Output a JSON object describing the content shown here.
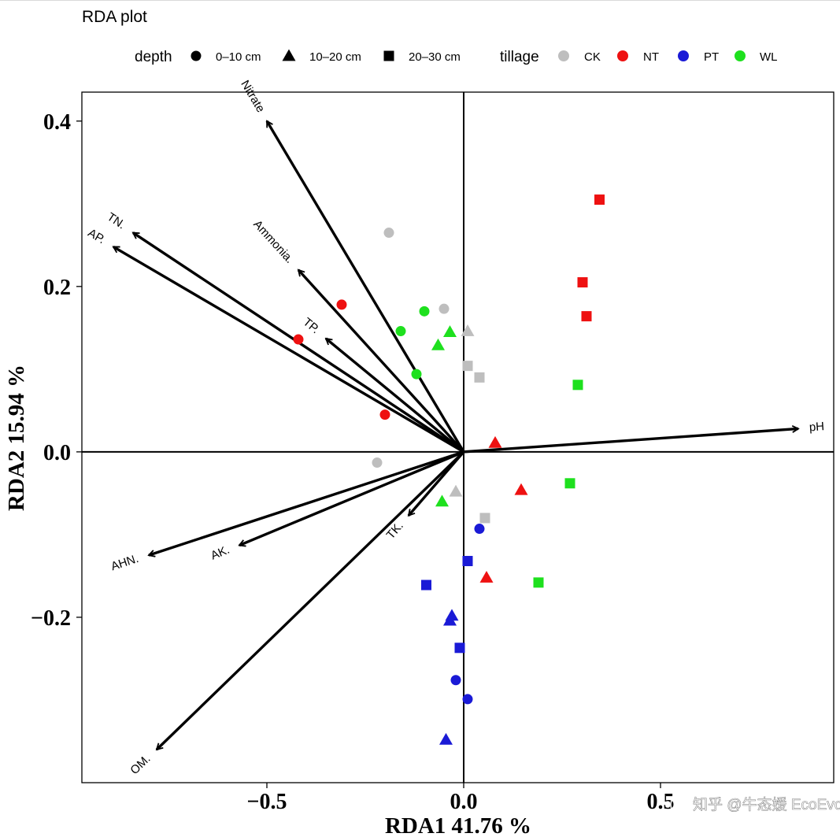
{
  "chart_data": {
    "type": "scatter",
    "title": "RDA plot",
    "xlabel": "RDA1 41.76  %",
    "ylabel": "RDA2 15.94  %",
    "xlim": [
      -0.97,
      0.94
    ],
    "ylim": [
      -0.4,
      0.435
    ],
    "xticks": [
      -0.5,
      0.0,
      0.5
    ],
    "xtick_labels": [
      "−0.5",
      "0.0",
      "0.5"
    ],
    "yticks": [
      -0.2,
      0.0,
      0.2,
      0.4
    ],
    "ytick_labels": [
      "−0.2",
      "0.0",
      "0.2",
      "0.4"
    ],
    "legend": {
      "position": "top",
      "depth_title": "depth",
      "depth_items": [
        {
          "label": "0–10 cm",
          "shape": "circle"
        },
        {
          "label": "10–20 cm",
          "shape": "triangle"
        },
        {
          "label": "20–30 cm",
          "shape": "square"
        }
      ],
      "tillage_title": "tillage",
      "tillage_items": [
        {
          "label": "CK",
          "color": "#bebebe"
        },
        {
          "label": "NT",
          "color": "#ee1111"
        },
        {
          "label": "PT",
          "color": "#1a1ad6"
        },
        {
          "label": "WL",
          "color": "#1ee01e"
        }
      ]
    },
    "colors": {
      "CK": "#bebebe",
      "NT": "#ee1111",
      "PT": "#1a1ad6",
      "WL": "#1ee01e"
    },
    "arrows": [
      {
        "label": "Nitrate",
        "x": -0.5,
        "y": 0.4
      },
      {
        "label": "TN.",
        "x": -0.84,
        "y": 0.265
      },
      {
        "label": "AP.",
        "x": -0.89,
        "y": 0.248
      },
      {
        "label": "Ammonia.",
        "x": -0.42,
        "y": 0.22
      },
      {
        "label": "TP.",
        "x": -0.35,
        "y": 0.137
      },
      {
        "label": "pH",
        "x": 0.85,
        "y": 0.028
      },
      {
        "label": "TK.",
        "x": -0.14,
        "y": -0.077
      },
      {
        "label": "AK.",
        "x": -0.57,
        "y": -0.113
      },
      {
        "label": "AHN.",
        "x": -0.8,
        "y": -0.125
      },
      {
        "label": "OM.",
        "x": -0.78,
        "y": -0.36
      }
    ],
    "points": [
      {
        "tillage": "CK",
        "depth": "0-10 cm",
        "x": -0.19,
        "y": 0.265
      },
      {
        "tillage": "CK",
        "depth": "0-10 cm",
        "x": -0.05,
        "y": 0.173
      },
      {
        "tillage": "CK",
        "depth": "0-10 cm",
        "x": -0.22,
        "y": -0.013
      },
      {
        "tillage": "CK",
        "depth": "10-20 cm",
        "x": 0.01,
        "y": 0.146
      },
      {
        "tillage": "CK",
        "depth": "10-20 cm",
        "x": -0.02,
        "y": -0.048
      },
      {
        "tillage": "CK",
        "depth": "20-30 cm",
        "x": 0.01,
        "y": 0.104
      },
      {
        "tillage": "CK",
        "depth": "20-30 cm",
        "x": 0.04,
        "y": 0.09
      },
      {
        "tillage": "CK",
        "depth": "20-30 cm",
        "x": 0.054,
        "y": -0.08
      },
      {
        "tillage": "NT",
        "depth": "0-10 cm",
        "x": -0.31,
        "y": 0.178
      },
      {
        "tillage": "NT",
        "depth": "0-10 cm",
        "x": -0.42,
        "y": 0.136
      },
      {
        "tillage": "NT",
        "depth": "0-10 cm",
        "x": -0.2,
        "y": 0.045
      },
      {
        "tillage": "NT",
        "depth": "10-20 cm",
        "x": 0.08,
        "y": 0.011
      },
      {
        "tillage": "NT",
        "depth": "10-20 cm",
        "x": 0.146,
        "y": -0.046
      },
      {
        "tillage": "NT",
        "depth": "10-20 cm",
        "x": 0.058,
        "y": -0.152
      },
      {
        "tillage": "NT",
        "depth": "20-30 cm",
        "x": 0.345,
        "y": 0.305
      },
      {
        "tillage": "NT",
        "depth": "20-30 cm",
        "x": 0.302,
        "y": 0.205
      },
      {
        "tillage": "NT",
        "depth": "20-30 cm",
        "x": 0.312,
        "y": 0.164
      },
      {
        "tillage": "PT",
        "depth": "0-10 cm",
        "x": 0.04,
        "y": -0.093
      },
      {
        "tillage": "PT",
        "depth": "0-10 cm",
        "x": -0.02,
        "y": -0.276
      },
      {
        "tillage": "PT",
        "depth": "0-10 cm",
        "x": 0.01,
        "y": -0.299
      },
      {
        "tillage": "PT",
        "depth": "10-20 cm",
        "x": -0.03,
        "y": -0.198
      },
      {
        "tillage": "PT",
        "depth": "10-20 cm",
        "x": -0.035,
        "y": -0.204
      },
      {
        "tillage": "PT",
        "depth": "10-20 cm",
        "x": -0.045,
        "y": -0.348
      },
      {
        "tillage": "PT",
        "depth": "20-30 cm",
        "x": 0.01,
        "y": -0.132
      },
      {
        "tillage": "PT",
        "depth": "20-30 cm",
        "x": -0.095,
        "y": -0.161
      },
      {
        "tillage": "PT",
        "depth": "20-30 cm",
        "x": -0.01,
        "y": -0.237
      },
      {
        "tillage": "WL",
        "depth": "0-10 cm",
        "x": -0.1,
        "y": 0.17
      },
      {
        "tillage": "WL",
        "depth": "0-10 cm",
        "x": -0.16,
        "y": 0.146
      },
      {
        "tillage": "WL",
        "depth": "0-10 cm",
        "x": -0.12,
        "y": 0.094
      },
      {
        "tillage": "WL",
        "depth": "10-20 cm",
        "x": -0.035,
        "y": 0.145
      },
      {
        "tillage": "WL",
        "depth": "10-20 cm",
        "x": -0.065,
        "y": 0.129
      },
      {
        "tillage": "WL",
        "depth": "10-20 cm",
        "x": -0.055,
        "y": -0.06
      },
      {
        "tillage": "WL",
        "depth": "20-30 cm",
        "x": 0.29,
        "y": 0.081
      },
      {
        "tillage": "WL",
        "depth": "20-30 cm",
        "x": 0.27,
        "y": -0.038
      },
      {
        "tillage": "WL",
        "depth": "20-30 cm",
        "x": 0.19,
        "y": -0.158
      }
    ]
  },
  "watermark": {
    "text": "知乎 @牛态媛 EcoEvoPhyto"
  }
}
